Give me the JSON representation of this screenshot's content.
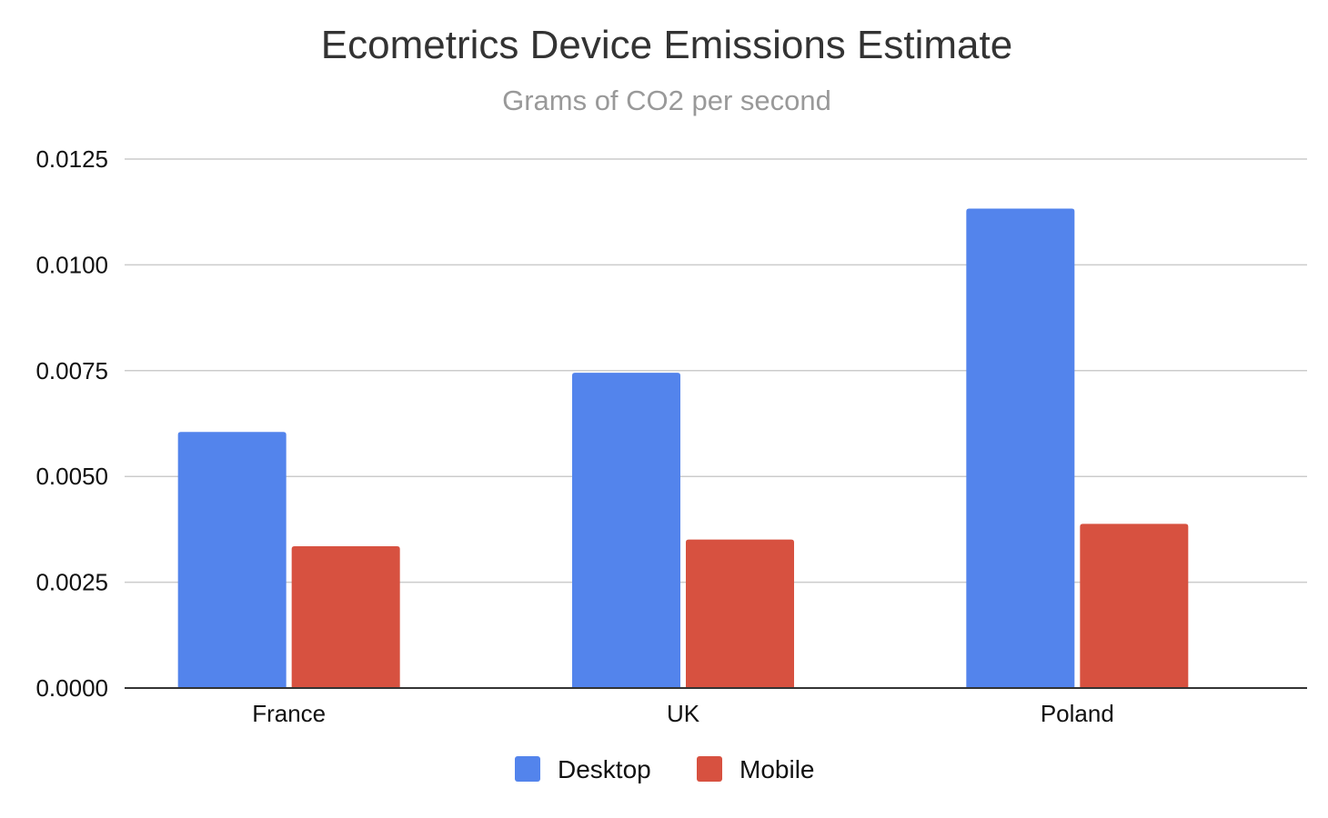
{
  "chart_data": {
    "type": "bar",
    "title": "Ecometrics Device Emissions Estimate",
    "subtitle": "Grams of CO2 per second",
    "xlabel": "",
    "ylabel": "",
    "categories": [
      "France",
      "UK",
      "Poland"
    ],
    "series": [
      {
        "name": "Desktop",
        "color": "#5384EC",
        "values": [
          0.00605,
          0.00745,
          0.01133
        ]
      },
      {
        "name": "Mobile",
        "color": "#D75140",
        "values": [
          0.00335,
          0.00351,
          0.00388
        ]
      }
    ],
    "ylim": [
      0,
      0.0125
    ],
    "yticks": [
      "0.0000",
      "0.0025",
      "0.0050",
      "0.0075",
      "0.0100",
      "0.0125"
    ],
    "ytick_values": [
      0,
      0.0025,
      0.005,
      0.0075,
      0.01,
      0.0125
    ],
    "grid": true,
    "legend_position": "bottom"
  }
}
